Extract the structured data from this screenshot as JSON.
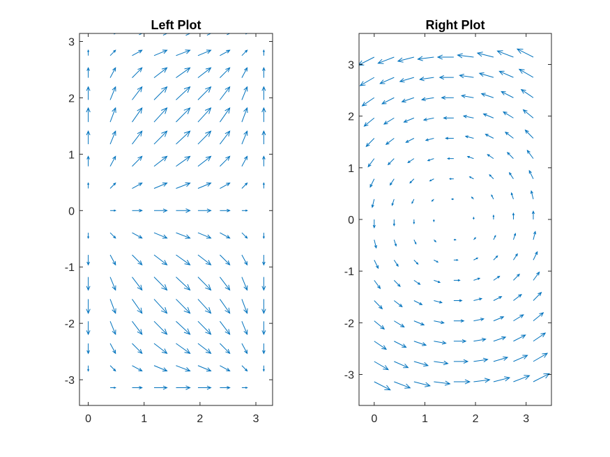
{
  "chart_data": [
    {
      "type": "quiver",
      "title": "Left Plot",
      "xlim": [
        -0.157,
        3.299
      ],
      "ylim": [
        -3.456,
        3.142
      ],
      "xticks": [
        0,
        1,
        2,
        3
      ],
      "xtick_labels": [
        "0",
        "1",
        "2",
        "3"
      ],
      "yticks": [
        -3,
        -2,
        -1,
        0,
        1,
        2,
        3
      ],
      "ytick_labels": [
        "-3",
        "-2",
        "-1",
        "0",
        "1",
        "2",
        "3"
      ],
      "grid": false,
      "field": {
        "x_start": 0,
        "x_step": 0.3927,
        "x_count": 9,
        "y_start": -3.1416,
        "y_step": 0.3927,
        "y_count": 17,
        "u": "sin(x)",
        "v": "sin(y)"
      },
      "color": "#0072BD"
    },
    {
      "type": "quiver",
      "title": "Right Plot",
      "xlim": [
        -0.3,
        3.5
      ],
      "ylim": [
        -3.6,
        3.6
      ],
      "xticks": [
        0,
        1,
        2,
        3
      ],
      "xtick_labels": [
        "0",
        "1",
        "2",
        "3"
      ],
      "yticks": [
        -3,
        -2,
        -1,
        0,
        1,
        2,
        3
      ],
      "ytick_labels": [
        "-3",
        "-2",
        "-1",
        "0",
        "1",
        "2",
        "3"
      ],
      "grid": false,
      "field": {
        "x_start": 0,
        "x_step": 0.3927,
        "x_count": 9,
        "y_start": -3.1416,
        "y_step": 0.3927,
        "y_count": 17,
        "u": "-y",
        "v": "x - 1.5708"
      },
      "color": "#0072BD"
    }
  ]
}
